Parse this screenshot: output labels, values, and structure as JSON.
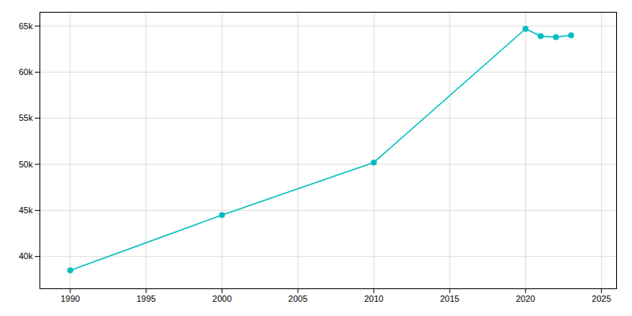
{
  "chart_data": {
    "type": "line",
    "x": [
      1990,
      2000,
      2010,
      2020,
      2021,
      2022,
      2023
    ],
    "values": [
      38500,
      44500,
      50200,
      64700,
      63900,
      63800,
      64000
    ],
    "color": "#00BFBF",
    "marker": "o",
    "xlim": [
      1988,
      2026
    ],
    "ylim": [
      36500,
      66500
    ],
    "xticks": [
      1990,
      1995,
      2000,
      2005,
      2010,
      2015,
      2020,
      2025
    ],
    "yticks": [
      {
        "value": 40000,
        "label": "40k"
      },
      {
        "value": 45000,
        "label": "45k"
      },
      {
        "value": 50000,
        "label": "50k"
      },
      {
        "value": 55000,
        "label": "55k"
      },
      {
        "value": 60000,
        "label": "60k"
      },
      {
        "value": 65000,
        "label": "65k"
      }
    ],
    "grid": true
  }
}
